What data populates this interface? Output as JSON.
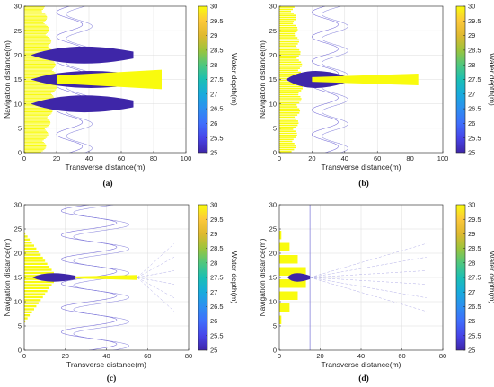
{
  "colors": {
    "deep": "#3e26a8",
    "shallow": "#f9fb0e",
    "colormap": [
      "#3e26a8",
      "#4744e8",
      "#3f6efc",
      "#2d8ff0",
      "#18abdc",
      "#1bbfb4",
      "#4fc77e",
      "#9cc43c",
      "#dfb930",
      "#fcc83b",
      "#f9fb0e"
    ]
  },
  "chart_data": [
    {
      "type": "heatmap",
      "panel_label": "(a)",
      "xlabel": "Transverse distance(m)",
      "ylabel": "Navigation distance(m)",
      "colorbar_label": "Water depth(m)",
      "xlim": [
        0,
        100
      ],
      "ylim": [
        0,
        30
      ],
      "xticks": [
        0,
        20,
        40,
        60,
        80,
        100
      ],
      "yticks": [
        0,
        5,
        10,
        15,
        20,
        25,
        30
      ],
      "clim": [
        25,
        30
      ],
      "cticks": [
        25,
        25.5,
        26,
        26.5,
        27,
        27.5,
        28,
        28.5,
        29,
        29.5,
        30
      ],
      "grid": true,
      "wake": {
        "sway_amplitude": 16,
        "sway_period": 5,
        "sway_start": 20,
        "contour_xmax": 75,
        "fan_xmax": 18,
        "spike_x": 85,
        "spike_y": 15,
        "spike_halfwidth": 2,
        "lobe_x": 75,
        "lobe_y": [
          10,
          15,
          20
        ],
        "dense": 1.0
      }
    },
    {
      "type": "heatmap",
      "panel_label": "(b)",
      "xlabel": "Transverse distance(m)",
      "ylabel": "Navigation distance(m)",
      "colorbar_label": "Water depth(m)",
      "xlim": [
        0,
        100
      ],
      "ylim": [
        0,
        30
      ],
      "xticks": [
        0,
        20,
        40,
        60,
        80,
        100
      ],
      "yticks": [
        0,
        5,
        10,
        15,
        20,
        25,
        30
      ],
      "clim": [
        25,
        30
      ],
      "cticks": [
        25,
        25.5,
        26,
        26.5,
        27,
        27.5,
        28,
        28.5,
        29,
        29.5,
        30
      ],
      "grid": true,
      "wake": {
        "sway_amplitude": 16,
        "sway_period": 5,
        "sway_start": 20,
        "contour_xmax": 75,
        "fan_xmax": 12,
        "spike_x": 85,
        "spike_y": 15,
        "spike_halfwidth": 1.2,
        "lobe_x": 40,
        "lobe_y": [
          15
        ],
        "dense": 0.6
      }
    },
    {
      "type": "heatmap",
      "panel_label": "(c)",
      "xlabel": "Transverse distance(m)",
      "ylabel": "Navigation distance(m)",
      "colorbar_label": "Water depth(m)",
      "xlim": [
        0,
        80
      ],
      "ylim": [
        0,
        30
      ],
      "xticks": [
        0,
        20,
        40,
        60,
        80
      ],
      "yticks": [
        0,
        5,
        10,
        15,
        20,
        25,
        30
      ],
      "clim": [
        25,
        30
      ],
      "cticks": [
        25,
        25.5,
        26,
        26.5,
        27,
        27.5,
        28,
        28.5,
        29,
        29.5,
        30
      ],
      "grid": true,
      "wake": {
        "sway_amplitude": 27,
        "sway_period": 5,
        "sway_start": 18,
        "contour_xmax": 73,
        "fan_xmax": 16,
        "spike_x": 55,
        "spike_y": 15,
        "spike_halfwidth": 0.5,
        "lobe_x": 25,
        "lobe_y": [
          15
        ],
        "dense": 0.4
      }
    },
    {
      "type": "heatmap",
      "panel_label": "(d)",
      "xlabel": "Transverse distance(m)",
      "ylabel": "Navigation distance(m)",
      "colorbar_label": "Water depth(m)",
      "xlim": [
        0,
        80
      ],
      "ylim": [
        0,
        30
      ],
      "xticks": [
        0,
        20,
        40,
        60,
        80
      ],
      "yticks": [
        0,
        5,
        10,
        15,
        20,
        25,
        30
      ],
      "clim": [
        25,
        30
      ],
      "cticks": [
        25,
        25.5,
        26,
        26.5,
        27,
        27.5,
        28,
        28.5,
        29,
        29.5,
        30
      ],
      "grid": true,
      "wake": {
        "sway_amplitude": 0,
        "sway_period": 5,
        "sway_start": 15,
        "contour_xmax": 72,
        "fan_xmax": 15,
        "spike_x": 15,
        "spike_y": 15,
        "spike_halfwidth": 0.6,
        "lobe_x": 15,
        "lobe_y": [
          15
        ],
        "dense": 0.1
      }
    }
  ]
}
